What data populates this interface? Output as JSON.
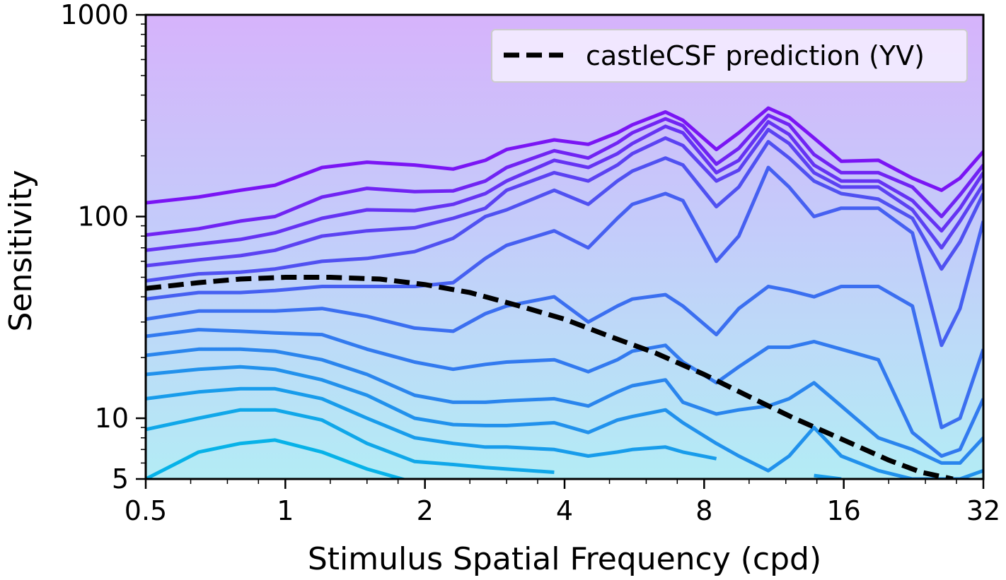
{
  "chart_data": {
    "type": "line",
    "title": "",
    "xlabel": "Stimulus Spatial Frequency (cpd)",
    "ylabel": "Sensitivity",
    "xscale": "log2",
    "yscale": "log10",
    "xlim": [
      0.5,
      32
    ],
    "ylim": [
      5,
      1000
    ],
    "xticks": [
      0.5,
      1,
      2,
      4,
      8,
      16,
      32
    ],
    "xtick_labels": [
      "0.5",
      "1",
      "2",
      "4",
      "8",
      "16",
      "32"
    ],
    "yticks": [
      5,
      10,
      100,
      1000
    ],
    "ytick_labels": [
      "5",
      "10",
      "100",
      "1000"
    ],
    "grid": false,
    "legend_position": "top-right",
    "colors": {
      "background_top": "#d6b3fb",
      "background_bottom": "#b3ecf5",
      "line_top": "#7a15f4",
      "line_mid": "#3b6ff0",
      "line_bottom": "#07b2e8",
      "prediction": "#000000"
    },
    "x": [
      0.5,
      0.65,
      0.8,
      0.95,
      1.2,
      1.5,
      1.9,
      2.3,
      2.7,
      3.0,
      3.8,
      4.5,
      5.2,
      5.6,
      6.6,
      7.2,
      8.5,
      9.5,
      11.0,
      12.2,
      13.8,
      15.8,
      19.0,
      22.5,
      26.0,
      28.5,
      32.0
    ],
    "series": [
      {
        "values": [
          117,
          125,
          135,
          143,
          175,
          186,
          180,
          172,
          190,
          215,
          240,
          228,
          260,
          285,
          330,
          300,
          215,
          260,
          345,
          310,
          245,
          188,
          190,
          155,
          135,
          155,
          210
        ]
      },
      {
        "values": [
          81,
          87,
          95,
          100,
          125,
          138,
          133,
          134,
          150,
          175,
          212,
          195,
          232,
          260,
          305,
          282,
          182,
          218,
          318,
          285,
          203,
          165,
          165,
          140,
          100,
          128,
          180
        ]
      },
      {
        "values": [
          68,
          73,
          77,
          83,
          98,
          108,
          107,
          115,
          130,
          150,
          190,
          175,
          205,
          230,
          280,
          260,
          165,
          190,
          295,
          255,
          180,
          150,
          150,
          120,
          85,
          110,
          165
        ]
      },
      {
        "values": [
          57,
          61,
          64,
          68,
          80,
          85,
          88,
          98,
          110,
          135,
          165,
          150,
          180,
          205,
          245,
          225,
          150,
          170,
          270,
          230,
          165,
          140,
          140,
          108,
          70,
          95,
          145
        ]
      },
      {
        "values": [
          48,
          52,
          53,
          55,
          60,
          62,
          67,
          78,
          100,
          108,
          135,
          115,
          150,
          168,
          195,
          180,
          112,
          140,
          235,
          195,
          150,
          130,
          122,
          98,
          55,
          75,
          130
        ]
      },
      {
        "values": [
          39,
          42,
          42,
          43,
          45,
          45,
          45,
          47,
          62,
          72,
          85,
          70,
          98,
          115,
          130,
          120,
          60,
          80,
          175,
          140,
          100,
          110,
          110,
          83,
          23,
          35,
          95
        ]
      },
      {
        "values": [
          31,
          34,
          34,
          34,
          35,
          32,
          28,
          27,
          33,
          36,
          40,
          30,
          36,
          39,
          41,
          36,
          26,
          35,
          45,
          43,
          40,
          45,
          45,
          36,
          9,
          10,
          22
        ]
      },
      {
        "values": [
          25.5,
          27.5,
          27,
          26.5,
          26,
          22,
          19,
          17.5,
          18.5,
          19,
          19.5,
          17,
          19.5,
          21.5,
          23,
          19,
          15,
          18,
          22.5,
          22.5,
          24,
          22,
          19.5,
          8.5,
          6.5,
          7,
          12.5
        ]
      },
      {
        "values": [
          20.5,
          22,
          22,
          21.5,
          19.5,
          16.5,
          13,
          12,
          12,
          12.2,
          12.5,
          11.5,
          13.5,
          14.5,
          15.5,
          12,
          10.5,
          11,
          11.5,
          12.5,
          15,
          11.5,
          8,
          7,
          6,
          6,
          8
        ]
      },
      {
        "values": [
          16.5,
          17.5,
          18,
          17.5,
          15.5,
          13,
          10,
          9.3,
          9.2,
          9.2,
          9.5,
          8.5,
          9.8,
          10.2,
          11,
          9.5,
          7.5,
          6.5,
          5.5,
          6.5,
          9,
          6.5,
          5.5,
          5,
          5,
          5,
          5.5
        ]
      },
      {
        "values": [
          12.5,
          13.5,
          14,
          14,
          12.5,
          10,
          8,
          7.5,
          7.2,
          7.2,
          7,
          6.5,
          6.8,
          7,
          7.2,
          6.8,
          6.3,
          null,
          null,
          null,
          5.2,
          5,
          null,
          null,
          null,
          null,
          null
        ]
      },
      {
        "values": [
          8.8,
          10,
          11,
          11,
          9.8,
          7.5,
          6.1,
          5.9,
          5.7,
          5.6,
          5.4,
          null,
          null,
          null,
          null,
          null,
          null,
          null,
          null,
          null,
          null,
          null,
          null,
          null,
          null,
          null,
          null
        ]
      },
      {
        "values": [
          5,
          6.8,
          7.5,
          7.8,
          6.8,
          5.6,
          4.8,
          null,
          null,
          null,
          null,
          null,
          null,
          null,
          null,
          null,
          null,
          null,
          null,
          null,
          null,
          null,
          null,
          null,
          null,
          null,
          null
        ]
      }
    ],
    "prediction": {
      "name": "castleCSF prediction (YV)",
      "x": [
        0.5,
        0.65,
        0.8,
        1.0,
        1.25,
        1.6,
        2.0,
        2.5,
        3.2,
        4.0,
        5.0,
        6.3,
        8.0,
        10.0,
        12.5,
        16.0,
        20.0,
        23.5,
        27.5
      ],
      "y": [
        44,
        47,
        49,
        50,
        50,
        49,
        46,
        42,
        36,
        31,
        25.5,
        21,
        16.5,
        12.8,
        10,
        7.8,
        6.2,
        5.4,
        5
      ]
    }
  }
}
